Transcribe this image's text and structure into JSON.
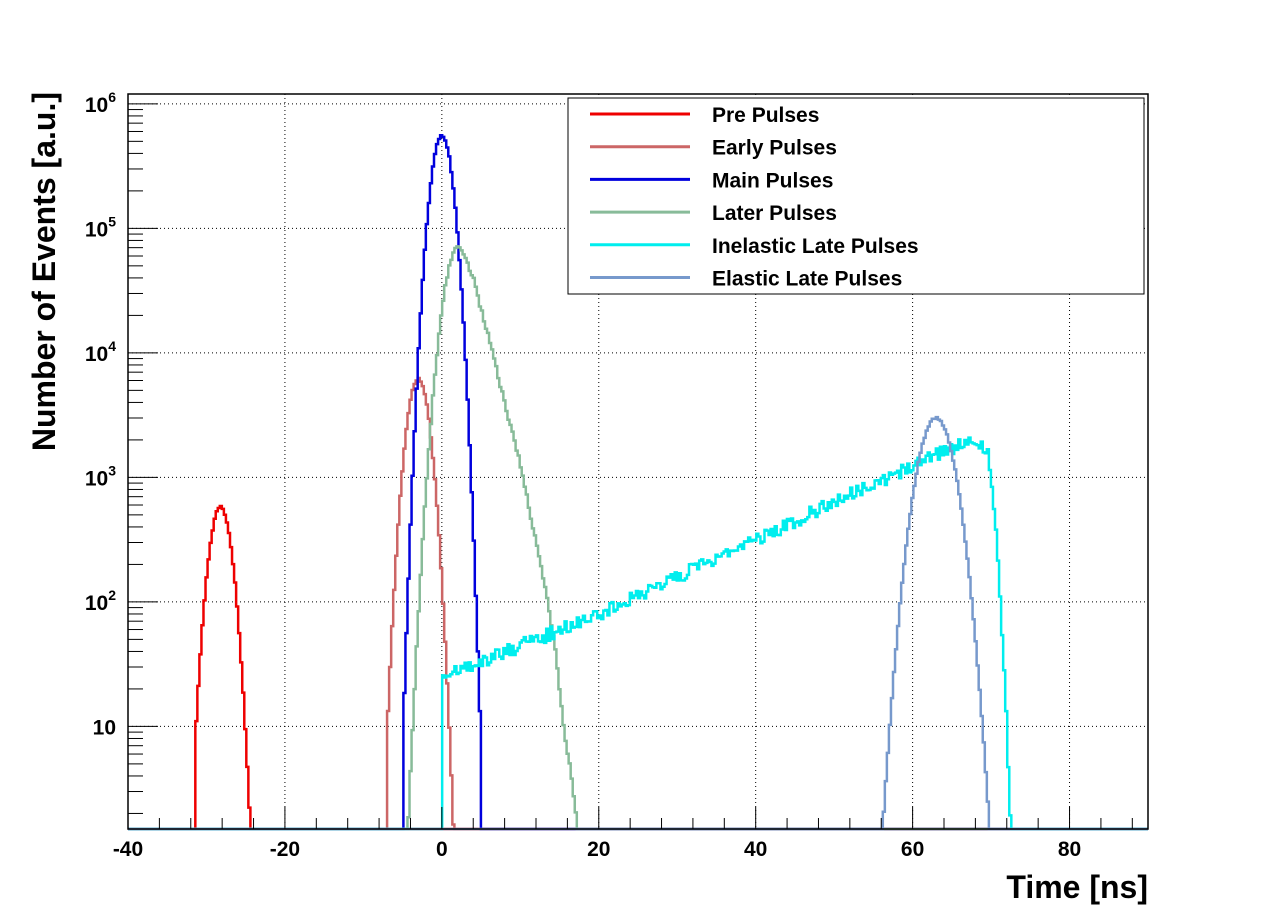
{
  "chart_data": {
    "type": "line",
    "step": true,
    "xlabel": "Time [ns]",
    "ylabel": "Number of Events [a.u.]",
    "xlim": [
      -40,
      90
    ],
    "ylim": [
      1.5,
      1200000
    ],
    "yscale": "log",
    "grid": true,
    "legend_position": "top-right",
    "x_ticks": [
      -40,
      -20,
      0,
      20,
      40,
      60,
      80
    ],
    "x_tick_labels": [
      "-40",
      "-20",
      "0",
      "20",
      "40",
      "60",
      "80"
    ],
    "y_ticks": [
      10,
      100,
      1000,
      10000,
      100000,
      1000000
    ],
    "y_tick_labels": [
      {
        "base": "10",
        "exp": ""
      },
      {
        "base": "10",
        "exp": "2"
      },
      {
        "base": "10",
        "exp": "3"
      },
      {
        "base": "10",
        "exp": "4"
      },
      {
        "base": "10",
        "exp": "5"
      },
      {
        "base": "10",
        "exp": "6"
      }
    ],
    "series": [
      {
        "name": "Pre Pulses",
        "color": "#ee0000",
        "shape": "gaussian",
        "peak_x": -28.2,
        "peak_y": 580,
        "sigma": 1.1,
        "range": [
          -31.5,
          -24.5
        ]
      },
      {
        "name": "Early Pulses",
        "color": "#cc6666",
        "shape": "gaussian",
        "peak_x": -3.0,
        "peak_y": 6200,
        "sigma": 1.1,
        "range": [
          -7.0,
          1.5
        ]
      },
      {
        "name": "Main Pulses",
        "color": "#0000dd",
        "shape": "gaussian",
        "peak_x": 0.0,
        "peak_y": 560000,
        "sigma": 1.05,
        "range": [
          -4.9,
          5.0
        ]
      },
      {
        "name": "Later Pulses",
        "color": "#88bb99",
        "shape": "gaussian-tail",
        "peak_x": 2.2,
        "peak_y": 74000,
        "sigma_left": 1.4,
        "tail_points": [
          [
            4,
            40000
          ],
          [
            6,
            13000
          ],
          [
            8,
            4000
          ],
          [
            10,
            1300
          ],
          [
            12,
            300
          ],
          [
            13.5,
            100
          ],
          [
            14.5,
            40
          ],
          [
            15.5,
            10
          ],
          [
            16.5,
            4
          ],
          [
            17.3,
            1.5
          ]
        ],
        "range": [
          -5.2,
          17.3
        ]
      },
      {
        "name": "Inelastic Late Pulses",
        "color": "#00eeee",
        "shape": "exponential",
        "points": [
          [
            0,
            25
          ],
          [
            20,
            80
          ],
          [
            40,
            320
          ],
          [
            60,
            1250
          ],
          [
            67.5,
            2000
          ],
          [
            69.5,
            1700
          ],
          [
            70.5,
            500
          ],
          [
            71.2,
            100
          ],
          [
            71.8,
            20
          ],
          [
            72.5,
            1.5
          ]
        ],
        "range": [
          0,
          72.5
        ]
      },
      {
        "name": "Elastic Late Pulses",
        "color": "#7799cc",
        "shape": "gaussian",
        "peak_x": 63.0,
        "peak_y": 3000,
        "sigma": 1.75,
        "range": [
          53.8,
          72.0
        ]
      }
    ]
  }
}
